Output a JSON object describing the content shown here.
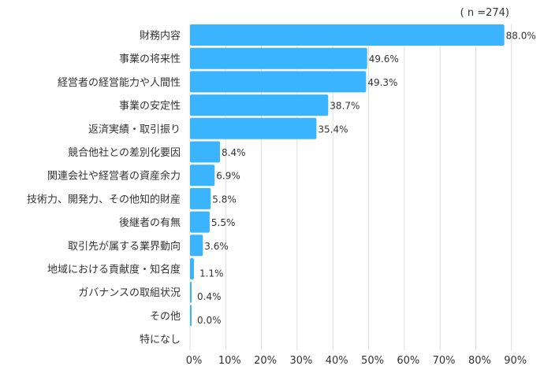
{
  "chart_data": {
    "type": "bar",
    "orientation": "horizontal",
    "note": "( n =274)",
    "categories": [
      "財務内容",
      "事業の将来性",
      "経営者の経営能力や人間性",
      "事業の安定性",
      "返済実績・取引振り",
      "競合他社との差別化要因",
      "関連会社や経営者の資産余力",
      "技術力、開発力、その他知的財産",
      "後継者の有無",
      "取引先が属する業界動向",
      "地域における貢献度・知名度",
      "ガバナンスの取組状況",
      "その他",
      "特になし"
    ],
    "values": [
      88.0,
      49.6,
      49.3,
      38.7,
      35.4,
      8.4,
      6.9,
      5.8,
      5.5,
      3.6,
      1.1,
      0.4,
      0.0,
      null
    ],
    "labels": [
      "88.0%",
      "49.6%",
      "49.3%",
      "38.7%",
      "35.4%",
      "8.4%",
      "6.9%",
      "5.8%",
      "5.5%",
      "3.6%",
      "1.1%",
      "0.4%",
      "0.0%",
      ""
    ],
    "xticks": [
      "0%",
      "10%",
      "20%",
      "30%",
      "40%",
      "50%",
      "60%",
      "70%",
      "80%",
      "90%"
    ],
    "xlim": [
      0,
      90
    ],
    "grid": true,
    "bar_color": "#3AB4FF",
    "grid_color": "#DDDDDD"
  }
}
